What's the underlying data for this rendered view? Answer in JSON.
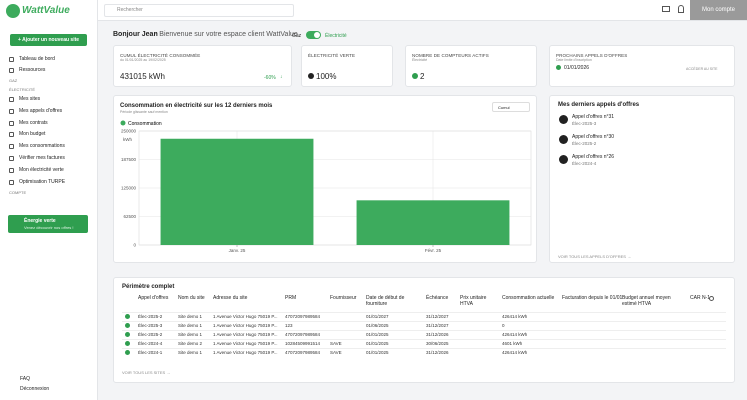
{
  "sidebar": {
    "logo": "WattValue",
    "add_button": "+ Ajouter un nouveau site",
    "menu": [
      "Tableau de bord",
      "Ressources"
    ],
    "sections": [
      {
        "title": "GAZ"
      },
      {
        "title": "ÉLECTRICITÉ",
        "items": [
          "Mes sites",
          "Mes appels d'offres",
          "Mes contrats",
          "Mon budget",
          "Mes consommations",
          "Vérifier mes factures",
          "Mon électricité verte",
          "Optimisation TURPE"
        ]
      },
      {
        "title": "COMPTE"
      }
    ],
    "promo": {
      "title": "Énergie verte",
      "text": "Venez découvrir nos offres !"
    },
    "footer": [
      "FAQ",
      "Déconnexion"
    ]
  },
  "topbar": {
    "search": "Rechercher",
    "account": "Mon compte"
  },
  "header": {
    "greeting": "Bonjour Jean",
    "welcome": "- Bienvenue sur votre espace client WattValue",
    "toggle_left": "Gaz",
    "toggle_right": "Électricité"
  },
  "cards": {
    "consumption": {
      "title": "CUMUL ÉLECTRICITÉ CONSOMMÉE",
      "period": "du 01/01/2025 au 19/02/2025",
      "value": "431015 kWh",
      "change": "-60%"
    },
    "green": {
      "title": "ÉLECTRICITÉ VERTE",
      "value": "100%"
    },
    "meters": {
      "title": "NOMBRE DE COMPTEURS ACTIFS",
      "subtitle": "Électricité",
      "value": "2"
    },
    "next_tenders": {
      "title": "PROCHAINS APPELS D'OFFRES",
      "subtitle": "Date limite d'inscription",
      "date": "01/01/2026",
      "link": "ACCÉDER AU SITE"
    }
  },
  "chart_card": {
    "mode": "Cumul"
  },
  "chart_data": {
    "type": "bar",
    "title": "Consommation en électricité sur les 12 derniers mois",
    "subtitle": "Période glissante sauf mention",
    "y_label": "kWh",
    "categories": [
      "Janv. 25",
      "Févr. 25"
    ],
    "series": [
      {
        "name": "Consommation",
        "color": "#3dab5d",
        "values": [
          233000,
          98000
        ]
      }
    ],
    "ylim": [
      0,
      250000
    ],
    "yticks": [
      0,
      62500,
      125000,
      187500,
      250000
    ],
    "grid": true,
    "legend": "top-left"
  },
  "tenders": {
    "title": "Mes derniers appels d'offres",
    "items": [
      {
        "name": "Appel d'offres n°31",
        "ref": "Élec-2025-3"
      },
      {
        "name": "Appel d'offres n°30",
        "ref": "Élec-2025-2"
      },
      {
        "name": "Appel d'offres n°26",
        "ref": "Élec-2024-4"
      }
    ],
    "link": "VOIR TOUS LES APPELS D'OFFRES →"
  },
  "table": {
    "title": "Périmètre complet",
    "columns": [
      "Appel d'offres",
      "Nom du site",
      "Adresse du site",
      "PRM",
      "Fournisseur",
      "Date de début de fourniture",
      "Échéance",
      "Prix unitaire HTVA",
      "Consommation actuelle",
      "Facturation depuis le 01/01",
      "Budget annuel moyen estimé HTVA",
      "CAR N-1"
    ],
    "rows": [
      {
        "tender": "Élec-2025-2",
        "site": "Site demo 1",
        "address": "1 Avenue Victor Hugo 75019 P...",
        "prm": "47072097989584",
        "start": "01/01/2027",
        "end": "31/12/2027",
        "consumption": "426414 kWh"
      },
      {
        "tender": "Élec-2025-3",
        "site": "Site demo 1",
        "address": "1 Avenue Victor Hugo 75019 P...",
        "prm": "123",
        "start": "01/06/2025",
        "end": "31/12/2027",
        "consumption": "0"
      },
      {
        "tender": "Élec-2025-2",
        "site": "Site demo 1",
        "address": "1 Avenue Victor Hugo 75019 P...",
        "prm": "47072097989584",
        "start": "01/01/2025",
        "end": "31/12/2026",
        "consumption": "426414 kWh"
      },
      {
        "tender": "Élec-2024-4",
        "site": "Site demo 2",
        "address": "1 Avenue Victor Hugo 75019 P...",
        "prm": "10284509991514",
        "supplier": "SAVE",
        "start": "01/01/2025",
        "end": "30/06/2025",
        "consumption": "4601 kWh"
      },
      {
        "tender": "Élec-2024-1",
        "site": "Site demo 1",
        "address": "1 Avenue Victor Hugo 75019 P...",
        "prm": "47072097989584",
        "supplier": "SAVE",
        "start": "01/01/2025",
        "end": "31/12/2026",
        "consumption": "426414 kWh"
      }
    ],
    "link": "VOIR TOUS LES SITES →"
  }
}
